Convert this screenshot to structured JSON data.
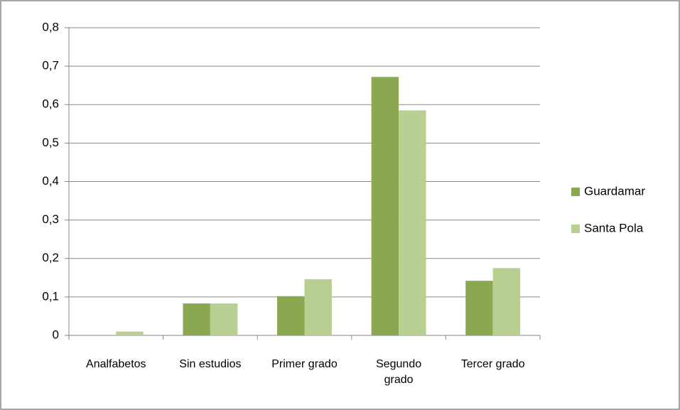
{
  "chart_data": {
    "type": "bar",
    "categories": [
      "Analfabetos",
      "Sin estudios",
      "Primer grado",
      "Segundo grado",
      "Tercer grado"
    ],
    "series": [
      {
        "name": "Guardamar",
        "color": "#8aa84f",
        "values": [
          0,
          0.083,
          0.102,
          0.672,
          0.142
        ]
      },
      {
        "name": "Santa Pola",
        "color": "#b8cf92",
        "values": [
          0.01,
          0.083,
          0.146,
          0.585,
          0.175
        ]
      }
    ],
    "ylim": [
      0,
      0.8
    ],
    "yticks": [
      0,
      {
        "value": 0.1,
        "label": "0,1"
      },
      {
        "value": 0.2,
        "label": "0,2"
      },
      {
        "value": 0.3,
        "label": "0,3"
      },
      {
        "value": 0.4,
        "label": "0,4"
      },
      {
        "value": 0.5,
        "label": "0,5"
      },
      {
        "value": 0.6,
        "label": "0,6"
      },
      {
        "value": 0.7,
        "label": "0,7"
      },
      {
        "value": 0.8,
        "label": "0,8"
      }
    ],
    "grid": true,
    "legend": "right"
  }
}
